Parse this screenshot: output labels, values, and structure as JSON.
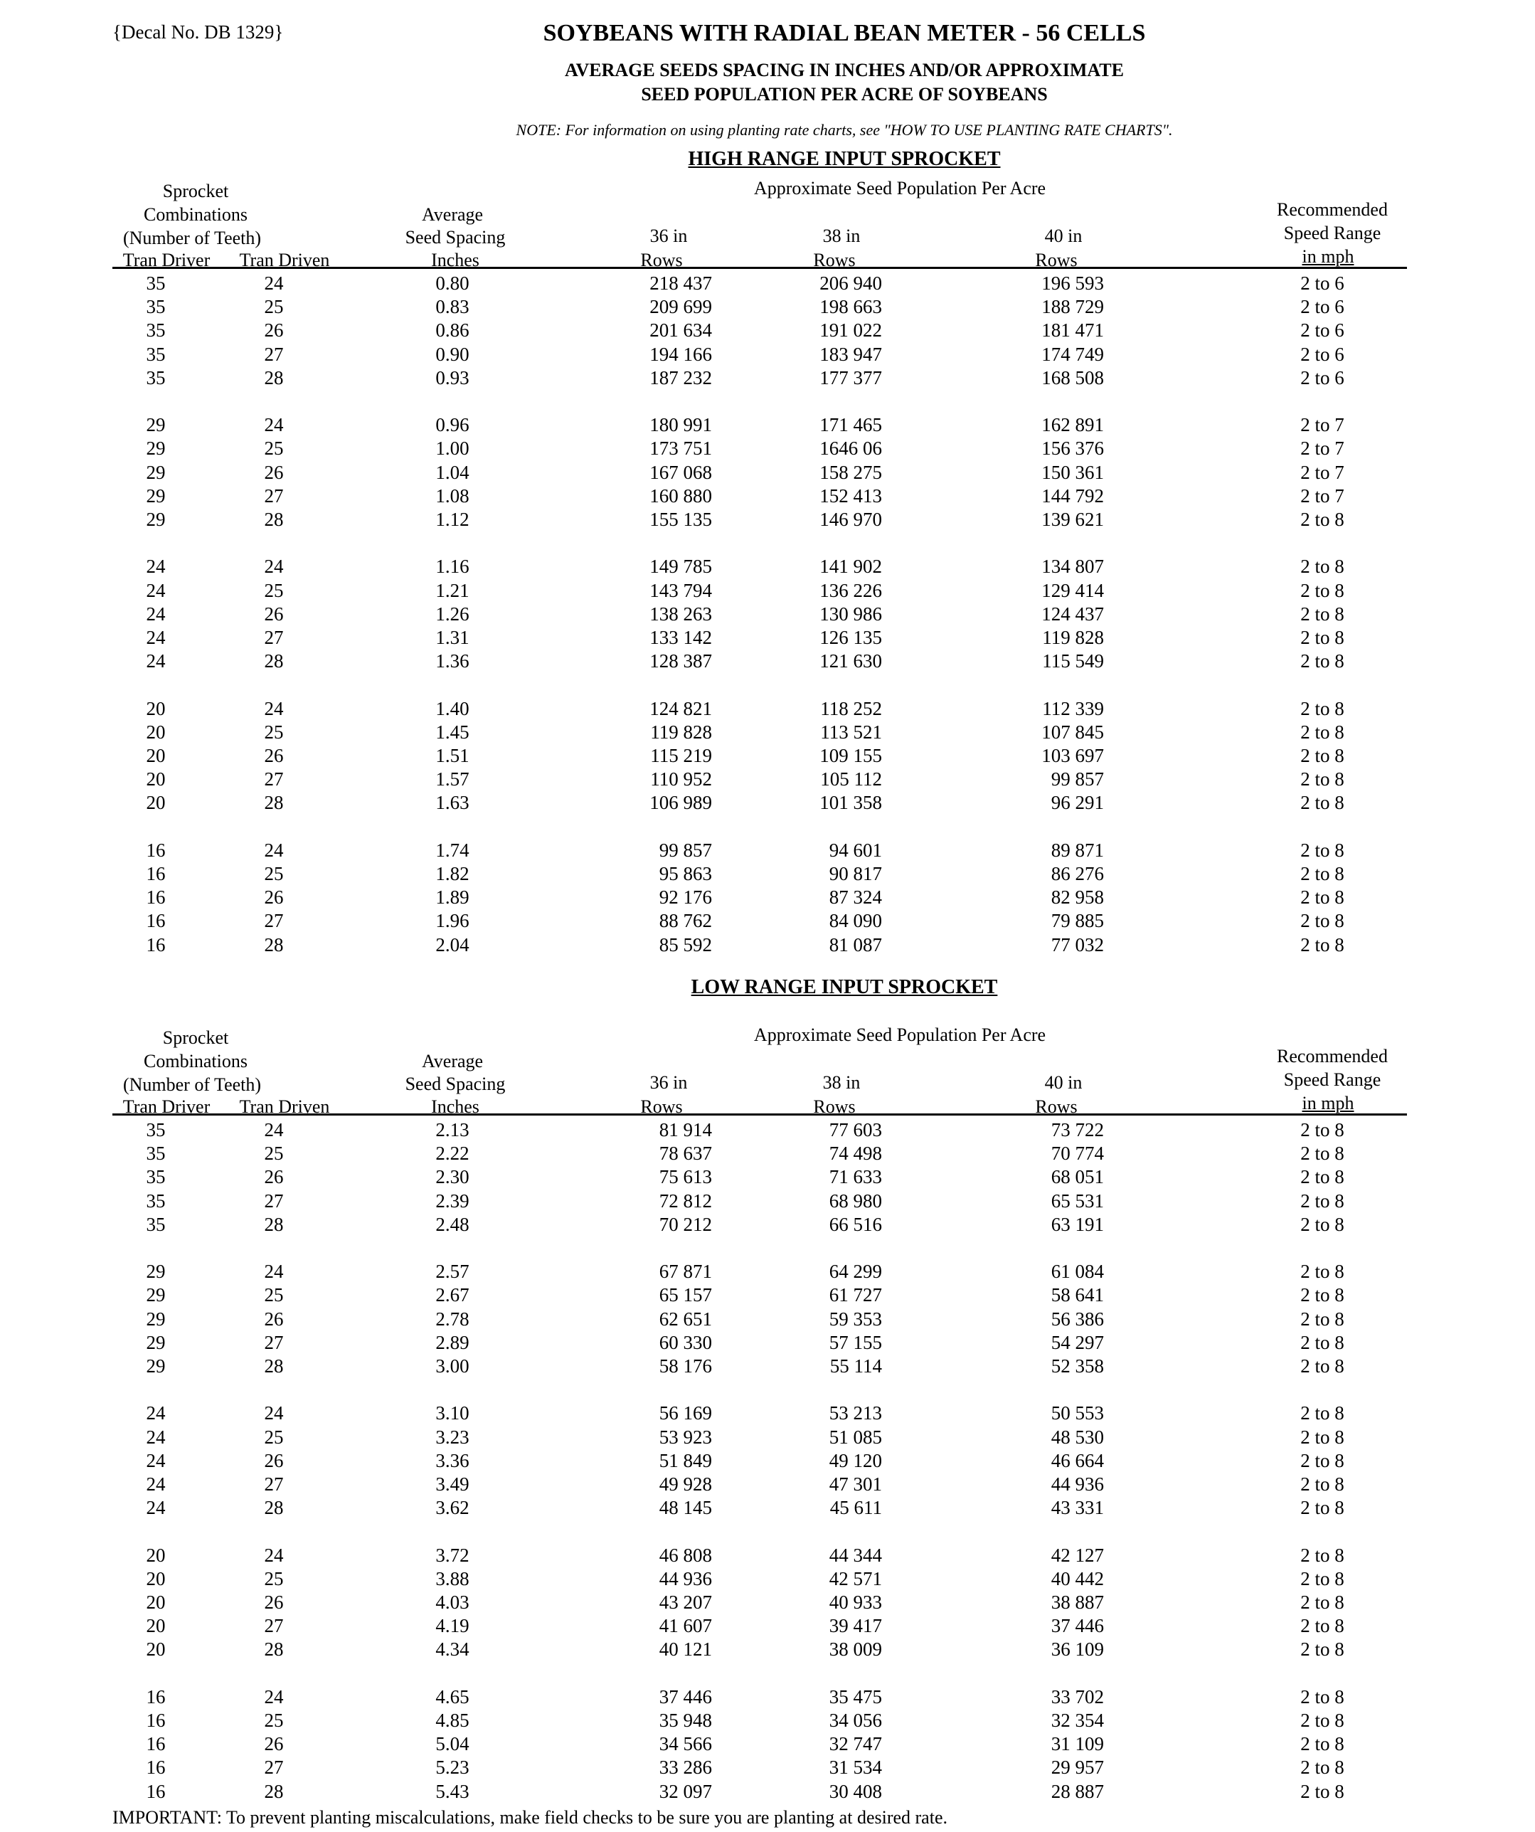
{
  "decal": "{Decal No. DB 1329}",
  "title": "SOYBEANS WITH RADIAL BEAN METER - 56 CELLS",
  "subtitle_1": "AVERAGE SEEDS SPACING IN INCHES AND/OR APPROXIMATE",
  "subtitle_2": "SEED POPULATION PER ACRE OF SOYBEANS",
  "note": "NOTE: For information on using planting rate charts, see \"HOW TO USE PLANTING RATE CHARTS\".",
  "important": "IMPORTANT: To prevent planting miscalculations, make field checks to be sure you are planting at desired rate.",
  "header": {
    "approx_pop": "Approximate Seed Population Per Acre",
    "sprocket": "Sprocket",
    "combinations": "Combinations",
    "number_of_teeth": "(Number of Teeth)",
    "tran_driver": "Tran Driver",
    "tran_driven": "Tran Driven",
    "average": "Average",
    "seed_spacing": "Seed Spacing",
    "inches": "Inches",
    "col_36": "36 in",
    "col_38": "38 in",
    "col_40": "40 in",
    "rows": "Rows",
    "recommended": "Recommended",
    "speed_range": "Speed Range",
    "in_mph": "in mph"
  },
  "tables": [
    {
      "heading": "HIGH RANGE INPUT SPROCKET",
      "groups": [
        [
          [
            "35",
            "24",
            "0.80",
            "218 437",
            "206 940",
            "196 593",
            "2 to 6"
          ],
          [
            "35",
            "25",
            "0.83",
            "209 699",
            "198 663",
            "188 729",
            "2 to 6"
          ],
          [
            "35",
            "26",
            "0.86",
            "201 634",
            "191 022",
            "181 471",
            "2 to 6"
          ],
          [
            "35",
            "27",
            "0.90",
            "194 166",
            "183 947",
            "174 749",
            "2 to 6"
          ],
          [
            "35",
            "28",
            "0.93",
            "187 232",
            "177 377",
            "168 508",
            "2 to 6"
          ]
        ],
        [
          [
            "29",
            "24",
            "0.96",
            "180 991",
            "171 465",
            "162 891",
            "2 to 7"
          ],
          [
            "29",
            "25",
            "1.00",
            "173 751",
            "1646 06",
            "156 376",
            "2 to 7"
          ],
          [
            "29",
            "26",
            "1.04",
            "167 068",
            "158 275",
            "150 361",
            "2 to 7"
          ],
          [
            "29",
            "27",
            "1.08",
            "160 880",
            "152 413",
            "144 792",
            "2 to 7"
          ],
          [
            "29",
            "28",
            "1.12",
            "155 135",
            "146 970",
            "139 621",
            "2 to 8"
          ]
        ],
        [
          [
            "24",
            "24",
            "1.16",
            "149 785",
            "141 902",
            "134 807",
            "2 to 8"
          ],
          [
            "24",
            "25",
            "1.21",
            "143 794",
            "136 226",
            "129 414",
            "2 to 8"
          ],
          [
            "24",
            "26",
            "1.26",
            "138 263",
            "130 986",
            "124 437",
            "2 to 8"
          ],
          [
            "24",
            "27",
            "1.31",
            "133 142",
            "126 135",
            "119 828",
            "2 to 8"
          ],
          [
            "24",
            "28",
            "1.36",
            "128 387",
            "121 630",
            "115 549",
            "2 to 8"
          ]
        ],
        [
          [
            "20",
            "24",
            "1.40",
            "124 821",
            "118 252",
            "112 339",
            "2 to 8"
          ],
          [
            "20",
            "25",
            "1.45",
            "119 828",
            "113 521",
            "107 845",
            "2 to 8"
          ],
          [
            "20",
            "26",
            "1.51",
            "115 219",
            "109 155",
            "103 697",
            "2 to 8"
          ],
          [
            "20",
            "27",
            "1.57",
            "110 952",
            "105 112",
            "99 857",
            "2 to 8"
          ],
          [
            "20",
            "28",
            "1.63",
            "106 989",
            "101 358",
            "96 291",
            "2 to 8"
          ]
        ],
        [
          [
            "16",
            "24",
            "1.74",
            "99 857",
            "94 601",
            "89 871",
            "2 to 8"
          ],
          [
            "16",
            "25",
            "1.82",
            "95 863",
            "90 817",
            "86 276",
            "2 to 8"
          ],
          [
            "16",
            "26",
            "1.89",
            "92 176",
            "87 324",
            "82 958",
            "2 to 8"
          ],
          [
            "16",
            "27",
            "1.96",
            "88 762",
            "84 090",
            "79 885",
            "2 to 8"
          ],
          [
            "16",
            "28",
            "2.04",
            "85 592",
            "81 087",
            "77 032",
            "2 to 8"
          ]
        ]
      ]
    },
    {
      "heading": "LOW RANGE INPUT SPROCKET",
      "groups": [
        [
          [
            "35",
            "24",
            "2.13",
            "81 914",
            "77 603",
            "73 722",
            "2 to 8"
          ],
          [
            "35",
            "25",
            "2.22",
            "78 637",
            "74 498",
            "70 774",
            "2 to 8"
          ],
          [
            "35",
            "26",
            "2.30",
            "75 613",
            "71 633",
            "68 051",
            "2 to 8"
          ],
          [
            "35",
            "27",
            "2.39",
            "72 812",
            "68 980",
            "65 531",
            "2 to 8"
          ],
          [
            "35",
            "28",
            "2.48",
            "70 212",
            "66 516",
            "63 191",
            "2 to 8"
          ]
        ],
        [
          [
            "29",
            "24",
            "2.57",
            "67 871",
            "64 299",
            "61 084",
            "2 to 8"
          ],
          [
            "29",
            "25",
            "2.67",
            "65 157",
            "61 727",
            "58 641",
            "2 to 8"
          ],
          [
            "29",
            "26",
            "2.78",
            "62 651",
            "59 353",
            "56 386",
            "2 to 8"
          ],
          [
            "29",
            "27",
            "2.89",
            "60 330",
            "57 155",
            "54 297",
            "2 to 8"
          ],
          [
            "29",
            "28",
            "3.00",
            "58 176",
            "55 114",
            "52 358",
            "2 to 8"
          ]
        ],
        [
          [
            "24",
            "24",
            "3.10",
            "56 169",
            "53 213",
            "50 553",
            "2 to 8"
          ],
          [
            "24",
            "25",
            "3.23",
            "53 923",
            "51 085",
            "48 530",
            "2 to 8"
          ],
          [
            "24",
            "26",
            "3.36",
            "51 849",
            "49 120",
            "46 664",
            "2 to 8"
          ],
          [
            "24",
            "27",
            "3.49",
            "49 928",
            "47 301",
            "44 936",
            "2 to 8"
          ],
          [
            "24",
            "28",
            "3.62",
            "48 145",
            "45 611",
            "43 331",
            "2 to 8"
          ]
        ],
        [
          [
            "20",
            "24",
            "3.72",
            "46 808",
            "44 344",
            "42 127",
            "2 to 8"
          ],
          [
            "20",
            "25",
            "3.88",
            "44 936",
            "42 571",
            "40 442",
            "2 to 8"
          ],
          [
            "20",
            "26",
            "4.03",
            "43 207",
            "40 933",
            "38 887",
            "2 to 8"
          ],
          [
            "20",
            "27",
            "4.19",
            "41 607",
            "39 417",
            "37 446",
            "2 to 8"
          ],
          [
            "20",
            "28",
            "4.34",
            "40 121",
            "38 009",
            "36 109",
            "2 to 8"
          ]
        ],
        [
          [
            "16",
            "24",
            "4.65",
            "37 446",
            "35 475",
            "33 702",
            "2 to 8"
          ],
          [
            "16",
            "25",
            "4.85",
            "35 948",
            "34 056",
            "32 354",
            "2 to 8"
          ],
          [
            "16",
            "26",
            "5.04",
            "34 566",
            "32 747",
            "31 109",
            "2 to 8"
          ],
          [
            "16",
            "27",
            "5.23",
            "33 286",
            "31 534",
            "29 957",
            "2 to 8"
          ],
          [
            "16",
            "28",
            "5.43",
            "32 097",
            "30 408",
            "28 887",
            "2 to 8"
          ]
        ]
      ]
    }
  ]
}
